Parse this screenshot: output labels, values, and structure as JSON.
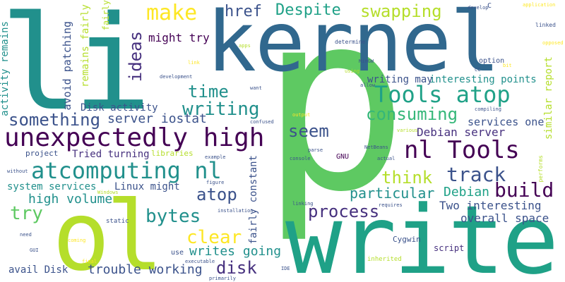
{
  "words": {
    "p": "p",
    "li": "li",
    "kernel": "kernel",
    "ol": "ol",
    "write": "write",
    "make": "make",
    "ideas": "ideas",
    "href": "href",
    "despite": "Despite",
    "swapping": "swapping",
    "might_try": "might try",
    "time": "time",
    "tools_atop": "Tools atop",
    "something": "something",
    "writing": "writing",
    "server_iostat": "server iostat",
    "consuming": "consuming",
    "unexpectedly_high": "unexpectedly high",
    "seem": "seem",
    "debian_server": "Debian server",
    "nl_tools": "nl Tools",
    "atcomputing_nl": "atcomputing nl",
    "think": "think",
    "track": "track",
    "build": "build",
    "atop": "atop",
    "particular": "particular",
    "debian": "Debian",
    "try": "try",
    "high_volume": "high volume",
    "bytes": "bytes",
    "process": "process",
    "two_interesting": "Two interesting",
    "clear": "clear",
    "overall_space": "overall space",
    "writes_going": "writes going",
    "disk": "disk",
    "trouble_working": "trouble working",
    "avail_disk": "avail Disk",
    "services_one": "services one",
    "interesting_points": "interesting points",
    "writing_may": "writing may",
    "disk_activity": "Disk activity",
    "tried_turning": "Tried turning",
    "project": "project",
    "system_services": "system services",
    "linux_might": "Linux might",
    "activity_remains": "activity remains",
    "avoid_patching": "avoid patching",
    "remains_fairly": "remains fairly",
    "fairly": "fairly",
    "similar_report": "similar report",
    "fairly_constant": "fairly constant",
    "gnu": "GNU",
    "script": "script",
    "cygwin": "Cygwin",
    "option": "option",
    "linked": "linked",
    "determine": "determine",
    "develop": "develop",
    "c": "C",
    "application": "application",
    "opposed": "opposed",
    "apps": "apps",
    "link": "link",
    "mingw": "MinGW",
    "using": "using",
    "cc": "CC",
    "bit": "bit",
    "allow": "allow",
    "development": "development",
    "want": "want",
    "compiling": "compiling",
    "output": "output",
    "confused": "confused",
    "various": "various",
    "performs": "performs",
    "netbeans": "NetBeans",
    "parse": "parse",
    "console": "console",
    "actual": "actual",
    "libraries": "libraries",
    "example": "example",
    "without": "without",
    "figure": "figure",
    "windows": "Windows",
    "requires": "requires",
    "linking": "linking",
    "installation": "installation",
    "primarily": "primarily",
    "static": "static",
    "need": "need",
    "coming": "coming",
    "use": "use",
    "gui": "GUI",
    "executable": "executable",
    "final": "final",
    "ide": "IDE",
    "inherited": "inherited"
  }
}
